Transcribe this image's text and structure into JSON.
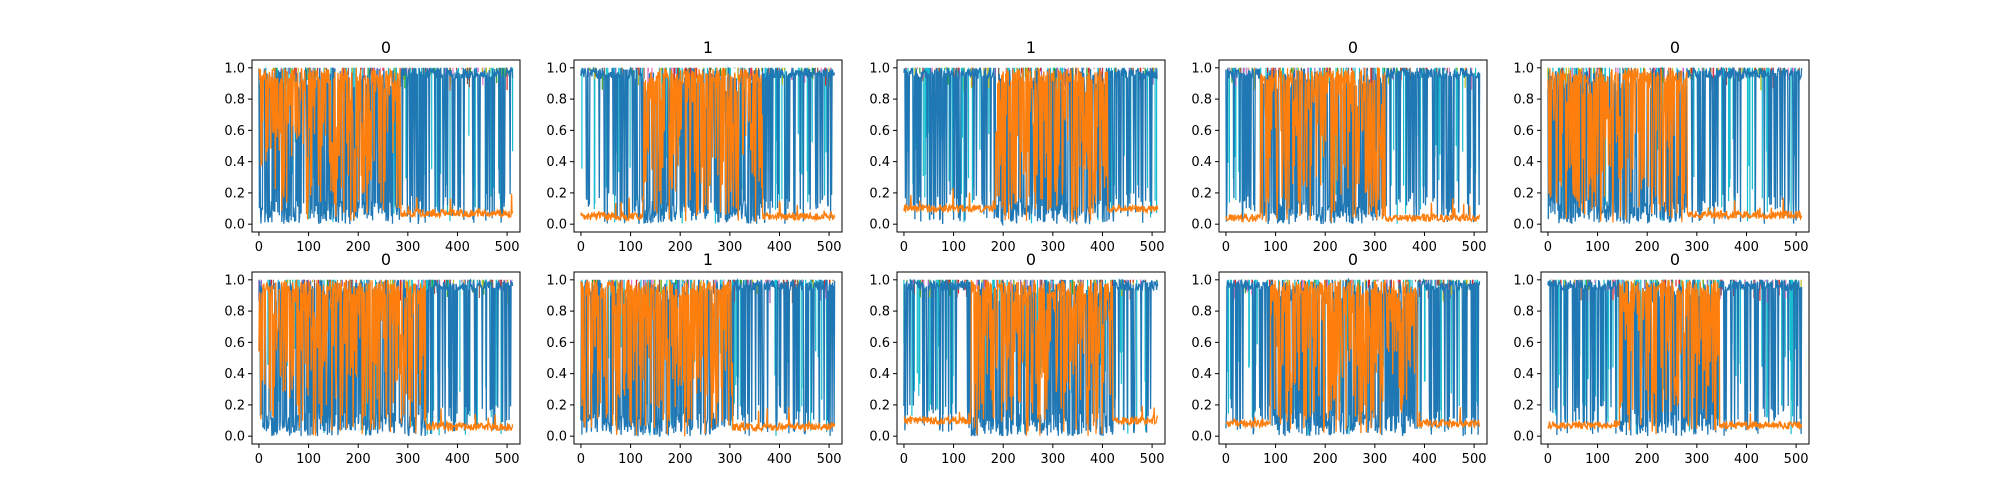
{
  "chart_data": {
    "type": "line",
    "layout": "2 rows x 5 columns of small multiples",
    "xlim": [
      -14,
      526
    ],
    "ylim": [
      -0.05,
      1.05
    ],
    "xticks": [
      0,
      100,
      200,
      300,
      400,
      500
    ],
    "yticks": [
      0.0,
      0.2,
      0.4,
      0.6,
      0.8,
      1.0
    ],
    "xtick_labels": [
      "0",
      "100",
      "200",
      "300",
      "400",
      "500"
    ],
    "ytick_labels": [
      "0.0",
      "0.2",
      "0.4",
      "0.6",
      "0.8",
      "1.0"
    ],
    "n_points": 512,
    "grid": false,
    "legend": "none",
    "series_colors": {
      "dominant": "#1f77b4",
      "highlight": "#ff7f0e",
      "minor": [
        "#17becf",
        "#2ca02c",
        "#9467bd",
        "#e377c2",
        "#bcbd22",
        "#8c564b",
        "#d62728"
      ]
    },
    "panels": [
      {
        "title": "0",
        "orange_regime": [
          0,
          285
        ],
        "low_level": 0.07
      },
      {
        "title": "1",
        "orange_regime": [
          125,
          365
        ],
        "low_level": 0.05
      },
      {
        "title": "1",
        "orange_regime": [
          185,
          410
        ],
        "low_level": 0.1
      },
      {
        "title": "0",
        "orange_regime": [
          70,
          320
        ],
        "low_level": 0.04
      },
      {
        "title": "0",
        "orange_regime": [
          0,
          280
        ],
        "low_level": 0.06
      },
      {
        "title": "0",
        "orange_regime": [
          0,
          335
        ],
        "low_level": 0.06
      },
      {
        "title": "1",
        "orange_regime": [
          0,
          305
        ],
        "low_level": 0.06
      },
      {
        "title": "0",
        "orange_regime": [
          135,
          420
        ],
        "low_level": 0.1
      },
      {
        "title": "0",
        "orange_regime": [
          90,
          385
        ],
        "low_level": 0.08
      },
      {
        "title": "0",
        "orange_regime": [
          145,
          345
        ],
        "low_level": 0.07
      }
    ]
  }
}
